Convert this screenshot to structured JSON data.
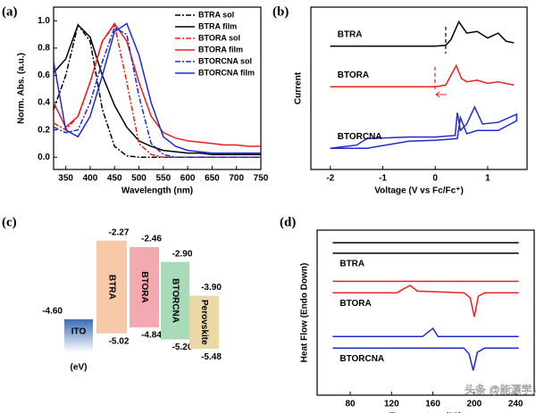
{
  "chart_data": [
    {
      "type": "line",
      "panel_label": "(a)",
      "xlabel": "Wavelength (nm)",
      "ylabel": "Norm. Abs. (a.u.)",
      "xlim": [
        325,
        750
      ],
      "ylim": [
        -0.09,
        1.1
      ],
      "xticks": [
        350,
        400,
        450,
        500,
        550,
        600,
        650,
        700,
        750
      ],
      "yticks": [
        {
          "value": 0,
          "label": "0.0"
        },
        0.2,
        0.4,
        0.6,
        0.8,
        {
          "value": 1,
          "label": "1.0"
        }
      ],
      "legend": "upper right",
      "series": [
        {
          "name": "BTRA sol",
          "color": "#000000",
          "linestyle": "dashdot",
          "x": [
            325,
            350,
            375,
            400,
            425,
            450,
            475,
            500,
            525,
            550,
            575,
            600,
            625,
            650,
            675,
            700,
            725,
            750
          ],
          "values": [
            0.35,
            0.6,
            0.97,
            0.85,
            0.35,
            0.08,
            0.01,
            0,
            0,
            0,
            0,
            0,
            0,
            0,
            0,
            0,
            0,
            0
          ]
        },
        {
          "name": "BTRA film",
          "color": "#000000",
          "linestyle": "solid",
          "x": [
            325,
            350,
            375,
            400,
            425,
            450,
            475,
            500,
            525,
            550,
            575,
            600,
            625,
            650,
            675,
            700,
            725,
            750
          ],
          "values": [
            0.62,
            0.72,
            0.97,
            0.88,
            0.6,
            0.38,
            0.22,
            0.12,
            0.08,
            0.05,
            0.04,
            0.03,
            0.03,
            0.02,
            0.02,
            0.02,
            0.02,
            0.02
          ]
        },
        {
          "name": "BTORA sol",
          "color": "#e8201e",
          "linestyle": "dashdot",
          "x": [
            325,
            350,
            375,
            400,
            425,
            450,
            475,
            500,
            525,
            550,
            575,
            600,
            625,
            650,
            675,
            700,
            725,
            750
          ],
          "values": [
            0.25,
            0.2,
            0.3,
            0.55,
            0.85,
            0.97,
            0.55,
            0.1,
            0.02,
            0,
            0,
            0,
            0,
            0,
            0,
            0,
            0,
            0
          ]
        },
        {
          "name": "BTORA film",
          "color": "#e8201e",
          "linestyle": "solid",
          "x": [
            325,
            350,
            375,
            400,
            425,
            450,
            475,
            500,
            525,
            550,
            575,
            600,
            625,
            650,
            675,
            700,
            725,
            750
          ],
          "values": [
            0.4,
            0.22,
            0.3,
            0.55,
            0.85,
            0.98,
            0.85,
            0.55,
            0.3,
            0.18,
            0.14,
            0.12,
            0.11,
            0.1,
            0.09,
            0.09,
            0.08,
            0.08
          ]
        },
        {
          "name": "BTORCNA sol",
          "color": "#1f2ad0",
          "linestyle": "dashdot",
          "x": [
            325,
            350,
            375,
            400,
            425,
            450,
            475,
            500,
            525,
            550,
            575,
            600,
            625,
            650,
            675,
            700,
            725,
            750
          ],
          "values": [
            0.22,
            0.18,
            0.2,
            0.4,
            0.7,
            0.95,
            0.9,
            0.45,
            0.1,
            0.02,
            0,
            0,
            0,
            0,
            0,
            0,
            0,
            0
          ]
        },
        {
          "name": "BTORCNA film",
          "color": "#1f2ad0",
          "linestyle": "solid",
          "x": [
            325,
            350,
            375,
            400,
            425,
            450,
            475,
            500,
            525,
            550,
            575,
            600,
            625,
            650,
            675,
            700,
            725,
            750
          ],
          "values": [
            0.7,
            0.2,
            0.15,
            0.3,
            0.6,
            0.92,
            0.98,
            0.75,
            0.4,
            0.15,
            0.08,
            0.05,
            0.04,
            0.03,
            0.03,
            0.03,
            0.03,
            0.03
          ]
        }
      ]
    },
    {
      "type": "line",
      "panel_label": "(b)",
      "xlabel": "Voltage (V vs Fc/Fc⁺)",
      "ylabel": "Current",
      "xlim": [
        -2.37,
        1.75
      ],
      "ylim": [
        0,
        10
      ],
      "xticks": [
        -2,
        -1,
        0,
        1
      ],
      "annotations": [
        "BTRA",
        "BTORA",
        "BTORCNA"
      ],
      "series": [
        {
          "color": "#000000",
          "linestyle": "solid",
          "x": [
            -2,
            -1,
            0,
            0.2,
            0.3,
            0.45,
            0.6,
            0.8,
            1.0,
            1.2,
            1.35,
            1.5
          ],
          "values": [
            7.6,
            7.6,
            7.6,
            7.65,
            8.0,
            9.1,
            8.4,
            8.5,
            8.1,
            8.4,
            7.9,
            7.8
          ]
        },
        {
          "color": "#e8201e",
          "linestyle": "solid",
          "x": [
            -2,
            -1,
            0,
            0.2,
            0.3,
            0.4,
            0.5,
            0.6,
            0.8,
            1.0,
            1.2,
            1.5
          ],
          "values": [
            5.1,
            5.1,
            5.1,
            5.2,
            5.8,
            6.4,
            5.6,
            5.4,
            5.5,
            5.3,
            5.4,
            5.2
          ]
        },
        {
          "color": "#1f2ad0",
          "linestyle": "solid",
          "x": [
            -2,
            -1.5,
            -1.3,
            -0.5,
            0,
            0.38,
            0.42,
            0.48,
            0.6,
            0.75,
            0.9,
            1.2,
            1.55,
            1.55,
            1.2,
            0.8,
            0.6,
            0.48,
            0.42,
            0,
            -0.5,
            -1.3,
            -1.5,
            -2
          ],
          "values": [
            1.3,
            1.5,
            1.9,
            2.0,
            2.0,
            2.1,
            3.5,
            2.4,
            2.8,
            3.85,
            2.8,
            2.9,
            3.4,
            3.0,
            2.4,
            2.4,
            2.2,
            3.2,
            1.9,
            1.8,
            1.75,
            1.3,
            1.3,
            1.3
          ]
        }
      ]
    },
    {
      "type": "energy",
      "panel_label": "(c)",
      "unit": "(eV)",
      "categories": [
        "ITO",
        "BTRA",
        "BTORA",
        "BTORCNA",
        "Perovskite"
      ],
      "colors": [
        "#3b6db5",
        "#f7c9a8",
        "#f4a8b0",
        "#a8dcb8",
        "#ead9a6"
      ],
      "series": [
        {
          "values": [
            -4.6,
            -2.27,
            -2.46,
            -2.9,
            -3.9
          ],
          "value_labels": [
            "-4.60",
            "-2.27",
            "-2.46",
            "-2.90",
            "-3.90"
          ]
        },
        {
          "values": [
            null,
            -5.02,
            -4.84,
            -5.2,
            -5.48
          ],
          "value_labels": [
            null,
            "-5.02",
            "-4.84",
            "-5.20",
            "-5.48"
          ]
        }
      ]
    },
    {
      "type": "line",
      "panel_label": "(d)",
      "xlabel": "Temperature (°C)",
      "ylabel": "Heat Flow (Endo Down)",
      "xlim": [
        48,
        258
      ],
      "ylim": [
        0,
        10
      ],
      "xticks": [
        80,
        120,
        160,
        200,
        240
      ],
      "annotations": [
        "BTRA",
        "BTORA",
        "BTORCNA"
      ],
      "series": [
        {
          "color": "#000000",
          "linestyle": "solid",
          "x": [
            63,
            243
          ],
          "values": [
            9.24,
            9.24
          ]
        },
        {
          "color": "#000000",
          "linestyle": "solid",
          "x": [
            63,
            243
          ],
          "values": [
            8.6,
            8.6
          ]
        },
        {
          "color": "#e8201e",
          "linestyle": "solid",
          "x": [
            63,
            243
          ],
          "values": [
            6.9,
            6.9
          ]
        },
        {
          "color": "#e8201e",
          "linestyle": "solid",
          "x": [
            63,
            125,
            132,
            138,
            145,
            190,
            196,
            200,
            204,
            210,
            243
          ],
          "values": [
            6.2,
            6.2,
            6.45,
            6.65,
            6.3,
            6.2,
            5.9,
            4.75,
            6.0,
            6.2,
            6.2
          ]
        },
        {
          "color": "#1f2ad0",
          "linestyle": "solid",
          "x": [
            63,
            150,
            156,
            160,
            165,
            243
          ],
          "values": [
            3.55,
            3.55,
            3.85,
            4.05,
            3.55,
            3.55
          ]
        },
        {
          "color": "#1f2ad0",
          "linestyle": "solid",
          "x": [
            63,
            190,
            195,
            199,
            203,
            210,
            243
          ],
          "values": [
            2.85,
            2.85,
            2.5,
            1.5,
            2.6,
            2.85,
            2.85
          ]
        }
      ]
    }
  ],
  "watermark": "头条 @能源学人"
}
